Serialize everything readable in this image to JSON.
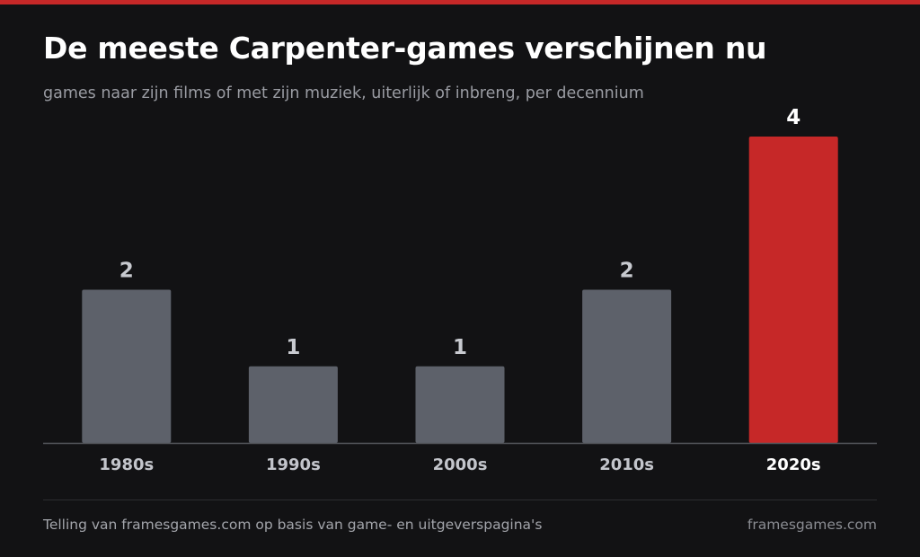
{
  "header": {
    "title": "De meeste Carpenter-games verschijnen nu",
    "subtitle": "games naar zijn films of met zijn muziek, uiterlijk of inbreng, per decennium"
  },
  "footer": {
    "source": "Telling van framesgames.com op basis van game- en uitgeverspagina's",
    "brand": "framesgames.com"
  },
  "colors": {
    "background": "#121214",
    "accent": "#c62828",
    "bar": "#5d616a",
    "axis": "#55575d",
    "value_label": "#c8cad0",
    "tick_label": "#c3c5cb",
    "highlight_label": "#ffffff"
  },
  "chart_data": {
    "type": "bar",
    "title": "De meeste Carpenter-games verschijnen nu",
    "subtitle": "games naar zijn films of met zijn muziek, uiterlijk of inbreng, per decennium",
    "categories": [
      "1980s",
      "1990s",
      "2000s",
      "2010s",
      "2020s"
    ],
    "values": [
      2,
      1,
      1,
      2,
      4
    ],
    "highlight": "2020s",
    "xlabel": "",
    "ylabel": "",
    "ylim": [
      0,
      4
    ],
    "grid": false,
    "legend": "none"
  }
}
